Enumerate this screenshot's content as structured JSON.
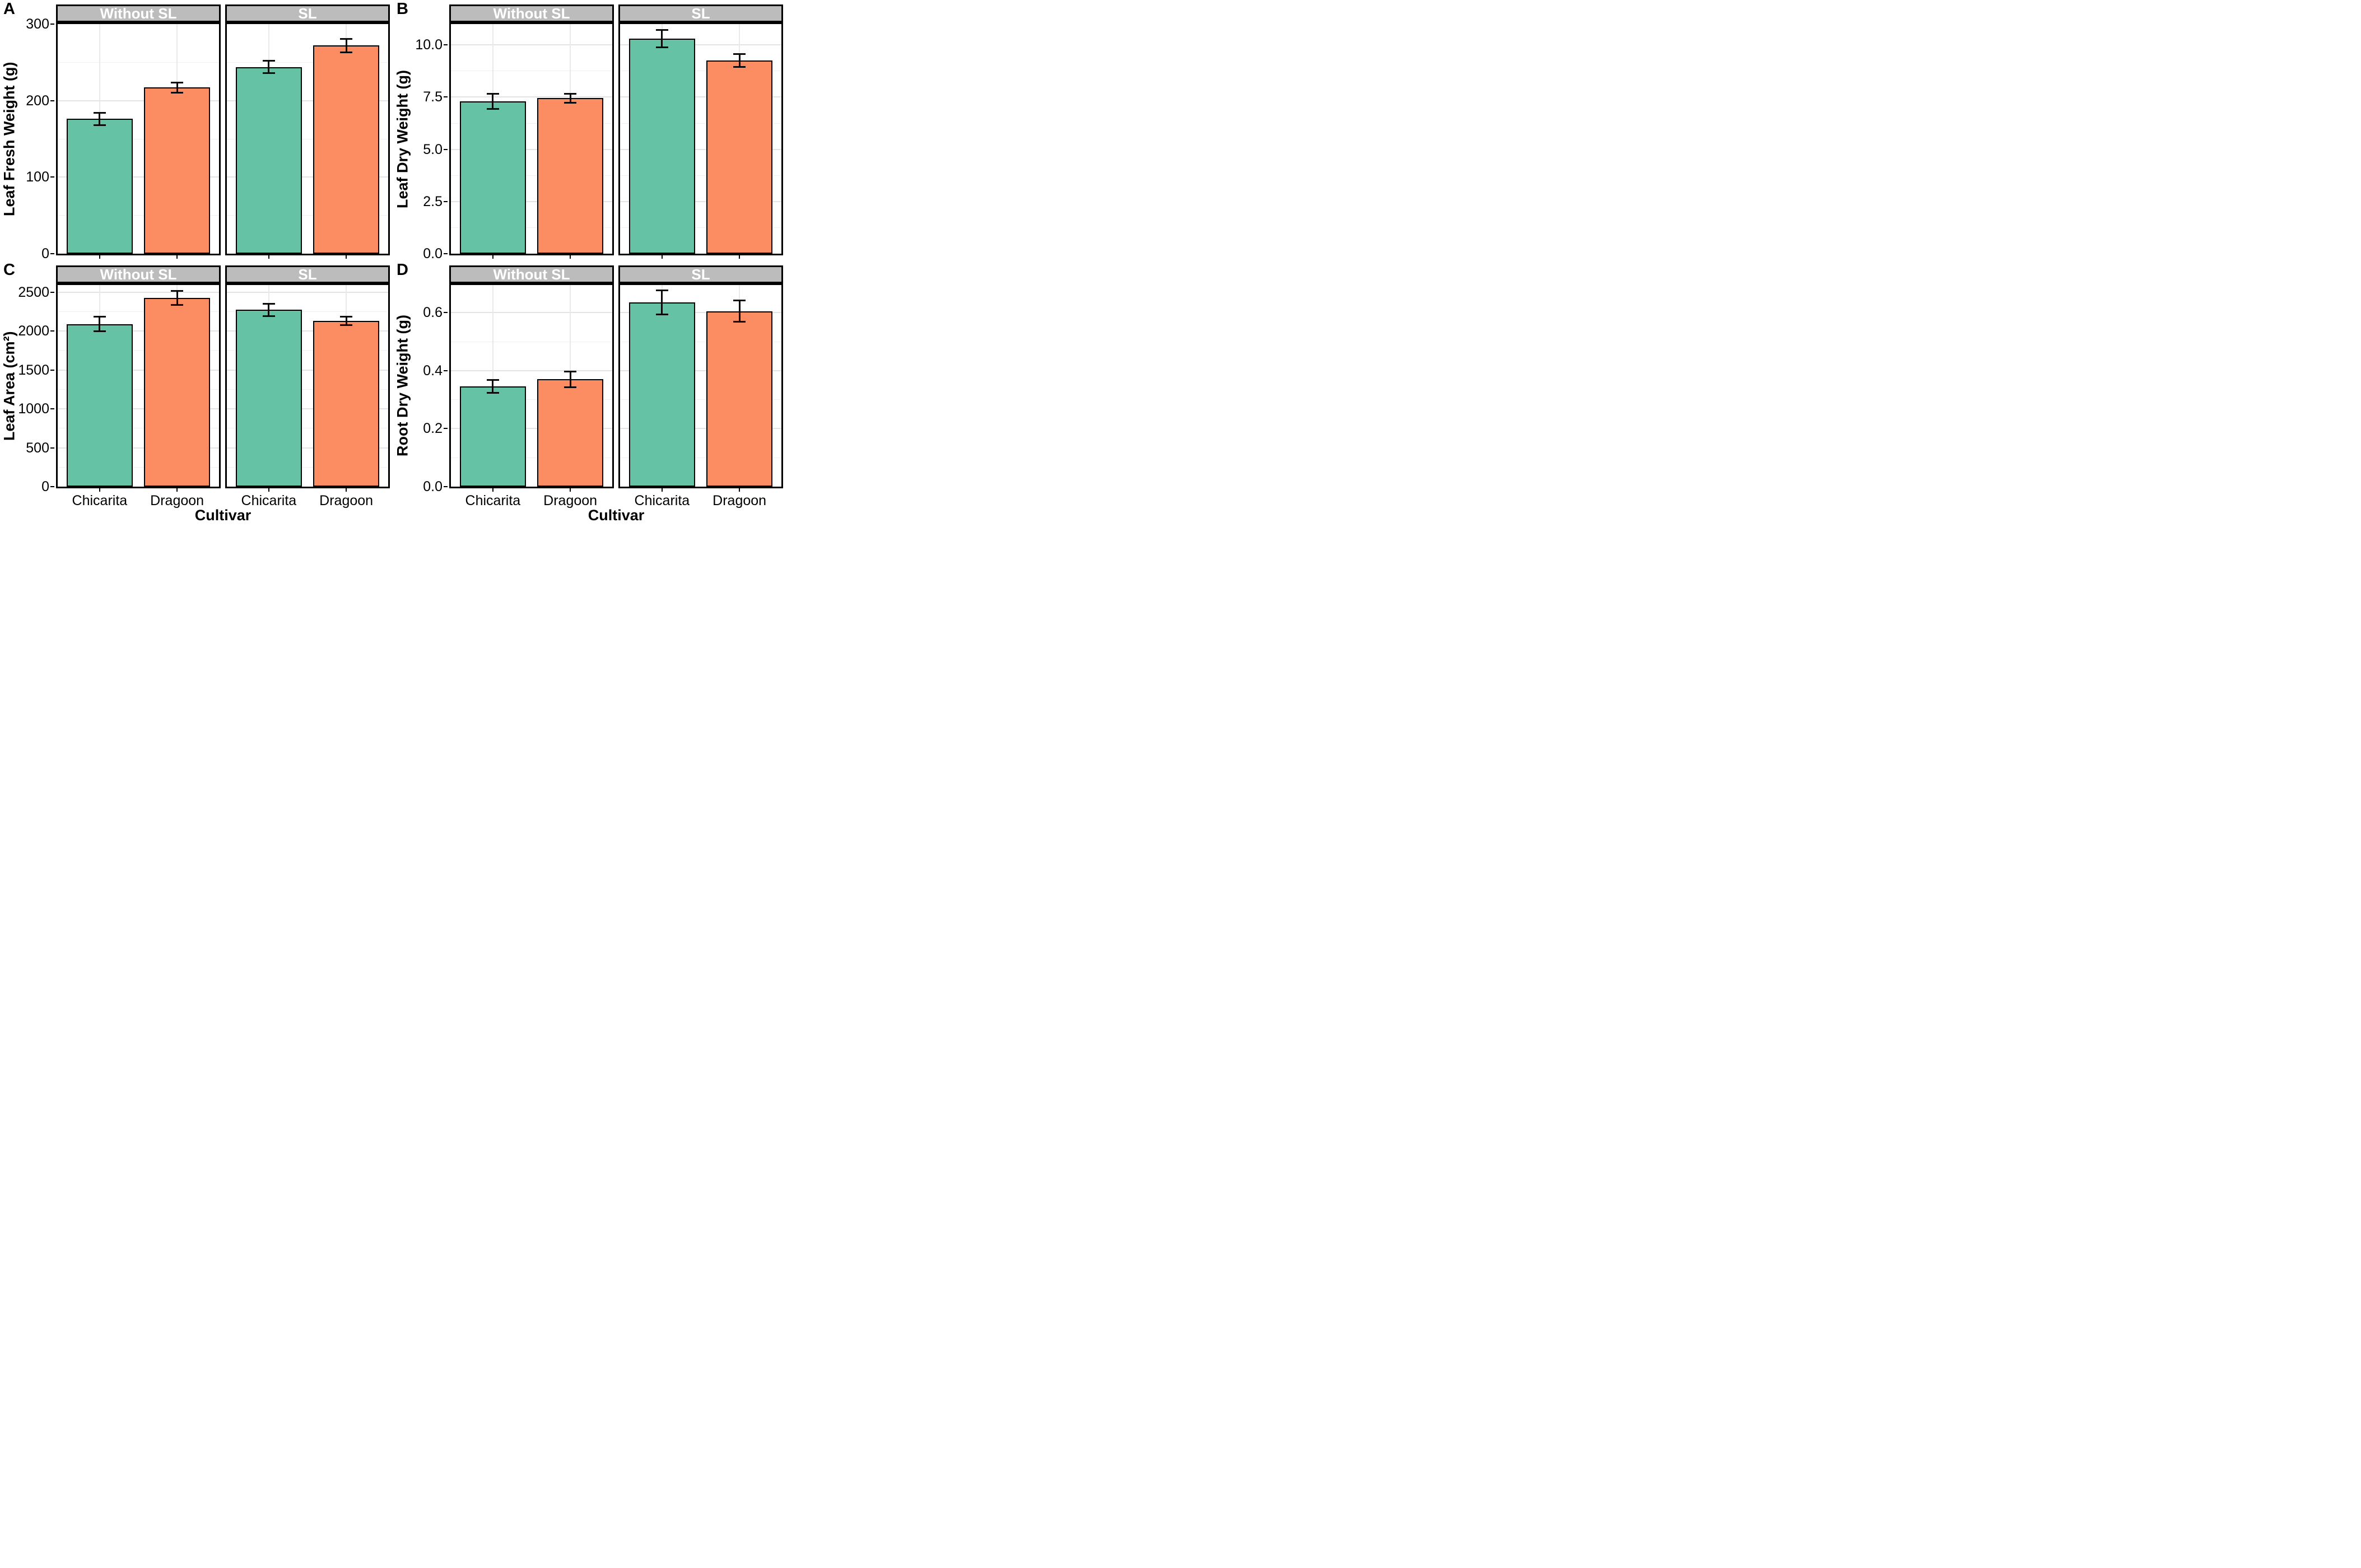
{
  "figure": {
    "panel_letters": [
      "A",
      "B",
      "C",
      "D"
    ],
    "x_axis_title": "Cultivar",
    "categories": [
      "Chicarita",
      "Dragoon"
    ],
    "facet_labels": [
      "Without SL",
      "SL"
    ],
    "colors": {
      "chicarita_bar": "#66C2A5",
      "dragoon_bar": "#FC8D62",
      "bar_border": "#000000",
      "strip_bg": "#BCBCBC",
      "strip_text": "#FFFFFF",
      "panel_border": "#000000",
      "grid_major": "#E4E4E4",
      "grid_minor": "#F0F0F0",
      "error_bar": "#0A0A0A"
    }
  },
  "chart_data": [
    {
      "type": "bar",
      "panel_letter": "A",
      "ylabel": "Leaf Fresh Weight (g)",
      "ylim": [
        0,
        300
      ],
      "yticks": [
        0,
        100,
        200,
        300
      ],
      "ytick_labels": [
        "0",
        "100",
        "200",
        "300"
      ],
      "grid": true,
      "show_x_tick_labels": false,
      "x_axis_title": null,
      "facets": [
        {
          "label": "Without SL",
          "bars": [
            {
              "category": "Chicarita",
              "value": 176,
              "error": 9
            },
            {
              "category": "Dragoon",
              "value": 217,
              "error": 8
            }
          ]
        },
        {
          "label": "SL",
          "bars": [
            {
              "category": "Chicarita",
              "value": 244,
              "error": 9
            },
            {
              "category": "Dragoon",
              "value": 272,
              "error": 10
            }
          ]
        }
      ]
    },
    {
      "type": "bar",
      "panel_letter": "B",
      "ylabel": "Leaf Dry Weight (g)",
      "ylim": [
        0,
        11
      ],
      "yticks": [
        0,
        2.5,
        5,
        7.5,
        10
      ],
      "ytick_labels": [
        "0.0",
        "2.5",
        "5.0",
        "7.5",
        "10.0"
      ],
      "grid": true,
      "show_x_tick_labels": false,
      "x_axis_title": null,
      "facets": [
        {
          "label": "Without SL",
          "bars": [
            {
              "category": "Chicarita",
              "value": 7.3,
              "error": 0.4
            },
            {
              "category": "Dragoon",
              "value": 7.45,
              "error": 0.25
            }
          ]
        },
        {
          "label": "SL",
          "bars": [
            {
              "category": "Chicarita",
              "value": 10.3,
              "error": 0.45
            },
            {
              "category": "Dragoon",
              "value": 9.25,
              "error": 0.35
            }
          ]
        }
      ]
    },
    {
      "type": "bar",
      "panel_letter": "C",
      "ylabel": "Leaf Area (cm²)",
      "ylim": [
        0,
        2590
      ],
      "yticks": [
        0,
        500,
        1000,
        1500,
        2000,
        2500
      ],
      "ytick_labels": [
        "0",
        "500",
        "1000",
        "1500",
        "2000",
        "2500"
      ],
      "grid": true,
      "show_x_tick_labels": true,
      "x_axis_title": "Cultivar",
      "facets": [
        {
          "label": "Without SL",
          "bars": [
            {
              "category": "Chicarita",
              "value": 2090,
              "error": 105
            },
            {
              "category": "Dragoon",
              "value": 2425,
              "error": 100
            }
          ]
        },
        {
          "label": "SL",
          "bars": [
            {
              "category": "Chicarita",
              "value": 2270,
              "error": 90
            },
            {
              "category": "Dragoon",
              "value": 2130,
              "error": 65
            }
          ]
        }
      ]
    },
    {
      "type": "bar",
      "panel_letter": "D",
      "ylabel": "Root Dry Weight (g)",
      "ylim": [
        0,
        0.695
      ],
      "yticks": [
        0,
        0.2,
        0.4,
        0.6
      ],
      "ytick_labels": [
        "0.0",
        "0.2",
        "0.4",
        "0.6"
      ],
      "grid": true,
      "show_x_tick_labels": true,
      "x_axis_title": "Cultivar",
      "facets": [
        {
          "label": "Without SL",
          "bars": [
            {
              "category": "Chicarita",
              "value": 0.345,
              "error": 0.025
            },
            {
              "category": "Dragoon",
              "value": 0.37,
              "error": 0.03
            }
          ]
        },
        {
          "label": "SL",
          "bars": [
            {
              "category": "Chicarita",
              "value": 0.635,
              "error": 0.045
            },
            {
              "category": "Dragoon",
              "value": 0.605,
              "error": 0.04
            }
          ]
        }
      ]
    }
  ]
}
